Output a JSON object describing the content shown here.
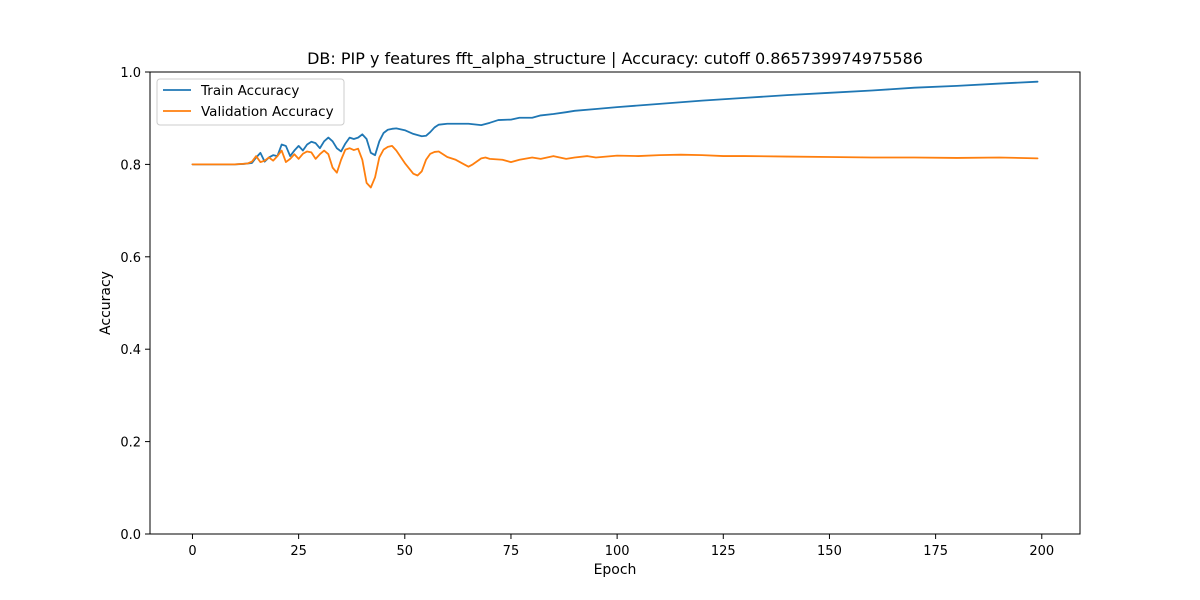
{
  "chart_data": {
    "type": "line",
    "title": "DB: PIP y features fft_alpha_structure | Accuracy: cutoff 0.865739974975586",
    "xlabel": "Epoch",
    "ylabel": "Accuracy",
    "xlim": [
      -10,
      209
    ],
    "ylim": [
      0.0,
      1.0
    ],
    "xticks": [
      0,
      25,
      50,
      75,
      100,
      125,
      150,
      175,
      200
    ],
    "yticks": [
      0.0,
      0.2,
      0.4,
      0.6,
      0.8,
      1.0
    ],
    "xtick_labels": [
      "0",
      "25",
      "50",
      "75",
      "100",
      "125",
      "150",
      "175",
      "200"
    ],
    "ytick_labels": [
      "0.0",
      "0.2",
      "0.4",
      "0.6",
      "0.8",
      "1.0"
    ],
    "grid": false,
    "legend_position": "top-left",
    "series": [
      {
        "name": "Train Accuracy",
        "color": "#1f77b4",
        "points": [
          [
            0,
            0.8
          ],
          [
            5,
            0.8
          ],
          [
            10,
            0.8
          ],
          [
            12,
            0.801
          ],
          [
            14,
            0.803
          ],
          [
            15,
            0.815
          ],
          [
            16,
            0.825
          ],
          [
            17,
            0.806
          ],
          [
            18,
            0.815
          ],
          [
            19,
            0.82
          ],
          [
            20,
            0.818
          ],
          [
            21,
            0.843
          ],
          [
            22,
            0.84
          ],
          [
            23,
            0.818
          ],
          [
            24,
            0.83
          ],
          [
            25,
            0.84
          ],
          [
            26,
            0.83
          ],
          [
            27,
            0.843
          ],
          [
            28,
            0.849
          ],
          [
            29,
            0.846
          ],
          [
            30,
            0.835
          ],
          [
            31,
            0.85
          ],
          [
            32,
            0.858
          ],
          [
            33,
            0.85
          ],
          [
            34,
            0.835
          ],
          [
            35,
            0.828
          ],
          [
            36,
            0.845
          ],
          [
            37,
            0.858
          ],
          [
            38,
            0.855
          ],
          [
            39,
            0.858
          ],
          [
            40,
            0.865
          ],
          [
            41,
            0.855
          ],
          [
            42,
            0.825
          ],
          [
            43,
            0.82
          ],
          [
            44,
            0.85
          ],
          [
            45,
            0.868
          ],
          [
            46,
            0.875
          ],
          [
            47,
            0.877
          ],
          [
            48,
            0.878
          ],
          [
            50,
            0.874
          ],
          [
            52,
            0.866
          ],
          [
            54,
            0.861
          ],
          [
            55,
            0.862
          ],
          [
            56,
            0.87
          ],
          [
            57,
            0.88
          ],
          [
            58,
            0.886
          ],
          [
            60,
            0.888
          ],
          [
            65,
            0.888
          ],
          [
            68,
            0.885
          ],
          [
            70,
            0.89
          ],
          [
            72,
            0.896
          ],
          [
            75,
            0.897
          ],
          [
            77,
            0.901
          ],
          [
            80,
            0.901
          ],
          [
            82,
            0.906
          ],
          [
            85,
            0.909
          ],
          [
            88,
            0.913
          ],
          [
            90,
            0.916
          ],
          [
            95,
            0.92
          ],
          [
            100,
            0.924
          ],
          [
            110,
            0.931
          ],
          [
            120,
            0.938
          ],
          [
            130,
            0.944
          ],
          [
            140,
            0.95
          ],
          [
            150,
            0.955
          ],
          [
            160,
            0.96
          ],
          [
            170,
            0.966
          ],
          [
            180,
            0.97
          ],
          [
            190,
            0.975
          ],
          [
            199,
            0.979
          ]
        ]
      },
      {
        "name": "Validation Accuracy",
        "color": "#ff7f0e",
        "points": [
          [
            0,
            0.8
          ],
          [
            5,
            0.8
          ],
          [
            10,
            0.8
          ],
          [
            13,
            0.802
          ],
          [
            14,
            0.806
          ],
          [
            15,
            0.818
          ],
          [
            16,
            0.805
          ],
          [
            17,
            0.808
          ],
          [
            18,
            0.815
          ],
          [
            19,
            0.808
          ],
          [
            20,
            0.818
          ],
          [
            21,
            0.83
          ],
          [
            22,
            0.805
          ],
          [
            23,
            0.812
          ],
          [
            24,
            0.822
          ],
          [
            25,
            0.812
          ],
          [
            26,
            0.823
          ],
          [
            27,
            0.828
          ],
          [
            28,
            0.826
          ],
          [
            29,
            0.812
          ],
          [
            30,
            0.822
          ],
          [
            31,
            0.83
          ],
          [
            32,
            0.822
          ],
          [
            33,
            0.793
          ],
          [
            34,
            0.782
          ],
          [
            35,
            0.81
          ],
          [
            36,
            0.832
          ],
          [
            37,
            0.835
          ],
          [
            38,
            0.831
          ],
          [
            39,
            0.834
          ],
          [
            40,
            0.81
          ],
          [
            41,
            0.76
          ],
          [
            42,
            0.75
          ],
          [
            43,
            0.772
          ],
          [
            44,
            0.815
          ],
          [
            45,
            0.832
          ],
          [
            46,
            0.838
          ],
          [
            47,
            0.84
          ],
          [
            48,
            0.83
          ],
          [
            50,
            0.803
          ],
          [
            52,
            0.78
          ],
          [
            53,
            0.776
          ],
          [
            54,
            0.785
          ],
          [
            55,
            0.81
          ],
          [
            56,
            0.823
          ],
          [
            57,
            0.827
          ],
          [
            58,
            0.828
          ],
          [
            60,
            0.816
          ],
          [
            62,
            0.81
          ],
          [
            64,
            0.8
          ],
          [
            65,
            0.795
          ],
          [
            66,
            0.8
          ],
          [
            68,
            0.813
          ],
          [
            69,
            0.815
          ],
          [
            70,
            0.812
          ],
          [
            73,
            0.81
          ],
          [
            75,
            0.805
          ],
          [
            77,
            0.81
          ],
          [
            80,
            0.815
          ],
          [
            82,
            0.812
          ],
          [
            85,
            0.818
          ],
          [
            88,
            0.812
          ],
          [
            90,
            0.815
          ],
          [
            93,
            0.818
          ],
          [
            95,
            0.815
          ],
          [
            100,
            0.819
          ],
          [
            105,
            0.818
          ],
          [
            110,
            0.82
          ],
          [
            115,
            0.821
          ],
          [
            120,
            0.82
          ],
          [
            125,
            0.818
          ],
          [
            130,
            0.818
          ],
          [
            140,
            0.817
          ],
          [
            150,
            0.816
          ],
          [
            160,
            0.815
          ],
          [
            170,
            0.815
          ],
          [
            180,
            0.814
          ],
          [
            190,
            0.815
          ],
          [
            199,
            0.813
          ]
        ]
      }
    ]
  }
}
